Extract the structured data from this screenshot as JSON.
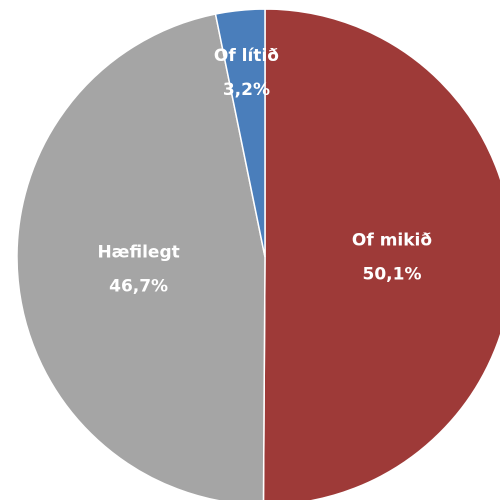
{
  "chart_data": {
    "type": "pie",
    "categories": [
      "Of mikið",
      "Hæfilegt",
      "Of lítið"
    ],
    "values": [
      50.1,
      46.7,
      3.2
    ],
    "value_labels": [
      "50,1%",
      "46,7%",
      "3,2%"
    ],
    "colors": [
      "#9e3a38",
      "#a5a5a5",
      "#4a7ebb"
    ]
  }
}
